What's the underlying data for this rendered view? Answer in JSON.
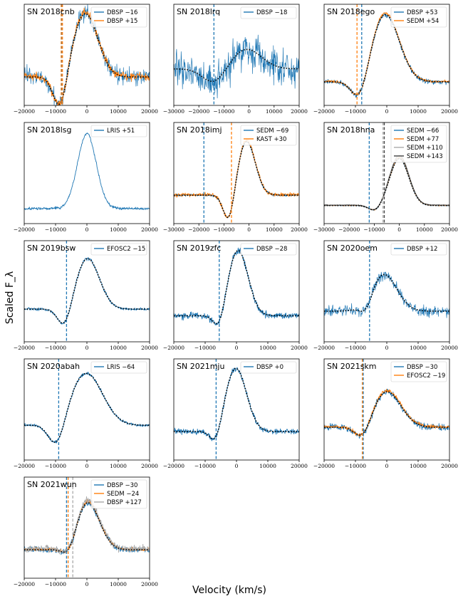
{
  "figure": {
    "ylabel": "Scaled F_λ",
    "xlabel": "Velocity (km/s)"
  },
  "colors": {
    "blue": "#1f77b4",
    "blue_dark": "#0a6aa8",
    "orange": "#ff7f0e",
    "gray": "#a9a9a9",
    "dark": "#444444",
    "model": "#000000"
  },
  "chart_data": [
    {
      "type": "line",
      "title": "SN 2018cnb",
      "xlim": [
        -20000,
        20000
      ],
      "xticks": [
        -20000,
        -10000,
        0,
        10000,
        20000
      ],
      "series": [
        {
          "name": "DBSP −16",
          "color": "blue",
          "noise": 0.22,
          "seed": 11
        },
        {
          "name": "DBSP +15",
          "color": "orange",
          "noise": 0.1,
          "seed": 12
        }
      ],
      "profile": {
        "emit_v": -500,
        "emit_w": 4000,
        "emit_a": 1.0,
        "abs_v": -8500,
        "abs_w": 2200,
        "abs_a": 0.55,
        "base": 0.3
      },
      "vlines": [
        {
          "v": -8000,
          "color": "blue"
        },
        {
          "v": -8200,
          "color": "orange"
        },
        {
          "v": -7800,
          "color": "orange"
        }
      ]
    },
    {
      "type": "line",
      "title": "SN 2018lrq",
      "xlim": [
        -30000,
        20000
      ],
      "xticks": [
        -30000,
        -20000,
        -10000,
        0,
        10000,
        20000
      ],
      "series": [
        {
          "name": "DBSP −18",
          "color": "blue",
          "noise": 0.55,
          "seed": 21
        }
      ],
      "profile": {
        "emit_v": -1000,
        "emit_w": 6000,
        "emit_a": 0.35,
        "abs_v": -14000,
        "abs_w": 4500,
        "abs_a": 0.25,
        "base": 0.5
      },
      "vlines": [
        {
          "v": -14000,
          "color": "blue"
        }
      ]
    },
    {
      "type": "line",
      "title": "SN 2018ego",
      "xlim": [
        -20000,
        20000
      ],
      "xticks": [
        -20000,
        -10000,
        0,
        10000,
        20000
      ],
      "series": [
        {
          "name": "DBSP +53",
          "color": "blue",
          "noise": 0.06,
          "seed": 31
        },
        {
          "name": "SEDM +54",
          "color": "orange",
          "noise": 0.03,
          "seed": 32
        }
      ],
      "profile": {
        "emit_v": -500,
        "emit_w": 4500,
        "emit_a": 1.0,
        "abs_v": -8500,
        "abs_w": 2600,
        "abs_a": 0.35,
        "base": 0.2
      },
      "vlines": [
        {
          "v": -8000,
          "color": "blue"
        },
        {
          "v": -9500,
          "color": "orange"
        }
      ]
    },
    {
      "type": "line",
      "title": "SN 2018lsg",
      "xlim": [
        -20000,
        20000
      ],
      "xticks": [
        -20000,
        -10000,
        0,
        10000,
        20000
      ],
      "series": [
        {
          "name": "LRIS +51",
          "color": "blue",
          "noise": 0.03,
          "seed": 41
        }
      ],
      "profile": {
        "emit_v": 0,
        "emit_w": 3000,
        "emit_a": 1.0,
        "abs_v": -8000,
        "abs_w": 2000,
        "abs_a": 0.0,
        "base": 0.05
      },
      "vlines": [],
      "no_model": true
    },
    {
      "type": "line",
      "title": "SN 2018imj",
      "xlim": [
        -30000,
        20000
      ],
      "xticks": [
        -30000,
        -20000,
        -10000,
        0,
        10000,
        20000
      ],
      "series": [
        {
          "name": "SEDM −69",
          "color": "blue",
          "noise": 0.03,
          "seed": 51
        },
        {
          "name": "KAST +30",
          "color": "orange",
          "noise": 0.05,
          "seed": 52
        }
      ],
      "profile": {
        "emit_v": -1000,
        "emit_w": 3500,
        "emit_a": 0.85,
        "abs_v": -8000,
        "abs_w": 2200,
        "abs_a": 0.45,
        "base": 0.3
      },
      "vlines": [
        {
          "v": -18000,
          "color": "blue"
        },
        {
          "v": -7000,
          "color": "orange"
        }
      ]
    },
    {
      "type": "line",
      "title": "SN 2018hna",
      "xlim": [
        -30000,
        20000
      ],
      "xticks": [
        -30000,
        -20000,
        -10000,
        0,
        10000,
        20000
      ],
      "series": [
        {
          "name": "SEDM −66",
          "color": "blue",
          "noise": 0.01,
          "seed": 61
        },
        {
          "name": "SEDM +77",
          "color": "orange",
          "noise": 0.01,
          "seed": 62
        },
        {
          "name": "SEDM +110",
          "color": "gray",
          "noise": 0.01,
          "seed": 63
        },
        {
          "name": "SEDM +143",
          "color": "dark",
          "noise": 0.01,
          "seed": 64
        }
      ],
      "profile": {
        "emit_v": 0,
        "emit_w": 3800,
        "emit_a": 0.65,
        "abs_v": -9500,
        "abs_w": 2500,
        "abs_a": 0.08,
        "base": 0.1
      },
      "vlines": [
        {
          "v": -12000,
          "color": "blue"
        },
        {
          "v": -6500,
          "color": "gray"
        },
        {
          "v": -6000,
          "color": "dark"
        }
      ]
    },
    {
      "type": "line",
      "title": "SN 2019bsw",
      "xlim": [
        -20000,
        20000
      ],
      "xticks": [
        -20000,
        -10000,
        0,
        10000,
        20000
      ],
      "series": [
        {
          "name": "EFOSC2 −15",
          "color": "blue",
          "noise": 0.04,
          "seed": 71
        }
      ],
      "profile": {
        "emit_v": 200,
        "emit_w": 3800,
        "emit_a": 0.85,
        "abs_v": -7000,
        "abs_w": 2200,
        "abs_a": 0.35,
        "base": 0.4
      },
      "vlines": [
        {
          "v": -6500,
          "color": "blue"
        }
      ]
    },
    {
      "type": "line",
      "title": "SN 2019zfc",
      "xlim": [
        -20000,
        20000
      ],
      "xticks": [
        -20000,
        -10000,
        0,
        10000,
        20000
      ],
      "series": [
        {
          "name": "DBSP −28",
          "color": "blue",
          "noise": 0.08,
          "seed": 81
        }
      ],
      "profile": {
        "emit_v": 500,
        "emit_w": 3200,
        "emit_a": 1.0,
        "abs_v": -5500,
        "abs_w": 1800,
        "abs_a": 0.25,
        "base": 0.25
      },
      "vlines": [
        {
          "v": -5500,
          "color": "blue"
        }
      ]
    },
    {
      "type": "line",
      "title": "SN 2020oem",
      "xlim": [
        -20000,
        20000
      ],
      "xticks": [
        -20000,
        -10000,
        0,
        10000,
        20000
      ],
      "series": [
        {
          "name": "DBSP +12",
          "color": "blue",
          "noise": 0.15,
          "seed": 91
        }
      ],
      "profile": {
        "emit_v": -1000,
        "emit_w": 4200,
        "emit_a": 0.6,
        "abs_v": -6500,
        "abs_w": 2000,
        "abs_a": 0.2,
        "base": 0.35
      },
      "vlines": [
        {
          "v": -5500,
          "color": "blue"
        }
      ]
    },
    {
      "type": "line",
      "title": "SN 2020abah",
      "xlim": [
        -20000,
        20000
      ],
      "xticks": [
        -20000,
        -10000,
        0,
        10000,
        20000
      ],
      "series": [
        {
          "name": "LRIS −64",
          "color": "blue",
          "noise": 0.04,
          "seed": 101
        }
      ],
      "profile": {
        "emit_v": -200,
        "emit_w": 5200,
        "emit_a": 0.9,
        "abs_v": -9500,
        "abs_w": 2600,
        "abs_a": 0.45,
        "base": 0.45
      },
      "vlines": [
        {
          "v": -9000,
          "color": "blue"
        }
      ]
    },
    {
      "type": "line",
      "title": "SN 2021mju",
      "xlim": [
        -20000,
        20000
      ],
      "xticks": [
        -20000,
        -10000,
        0,
        10000,
        20000
      ],
      "series": [
        {
          "name": "DBSP +0",
          "color": "blue",
          "noise": 0.07,
          "seed": 111
        }
      ],
      "profile": {
        "emit_v": -200,
        "emit_w": 3400,
        "emit_a": 1.0,
        "abs_v": -6500,
        "abs_w": 1800,
        "abs_a": 0.25,
        "base": 0.3
      },
      "vlines": [
        {
          "v": -6500,
          "color": "blue"
        }
      ]
    },
    {
      "type": "line",
      "title": "SN 2021skm",
      "xlim": [
        -20000,
        20000
      ],
      "xticks": [
        -20000,
        -10000,
        0,
        10000,
        20000
      ],
      "series": [
        {
          "name": "DBSP −30",
          "color": "blue",
          "noise": 0.09,
          "seed": 121
        },
        {
          "name": "EFOSC2 −19",
          "color": "orange",
          "noise": 0.05,
          "seed": 122
        }
      ],
      "profile": {
        "emit_v": 0,
        "emit_w": 4500,
        "emit_a": 0.6,
        "abs_v": -7500,
        "abs_w": 2500,
        "abs_a": 0.25,
        "base": 0.4
      },
      "vlines": [
        {
          "v": -7500,
          "color": "blue"
        },
        {
          "v": -7800,
          "color": "orange"
        }
      ]
    },
    {
      "type": "line",
      "title": "SN 2021wun",
      "xlim": [
        -20000,
        20000
      ],
      "xticks": [
        -20000,
        -10000,
        0,
        10000,
        20000
      ],
      "series": [
        {
          "name": "DBSP −30",
          "color": "blue",
          "noise": 0.08,
          "seed": 131
        },
        {
          "name": "SEDM −24",
          "color": "orange",
          "noise": 0.05,
          "seed": 132
        },
        {
          "name": "DBSP +127",
          "color": "gray",
          "noise": 0.1,
          "seed": 133
        }
      ],
      "profile": {
        "emit_v": 200,
        "emit_w": 3800,
        "emit_a": 0.75,
        "abs_v": -5500,
        "abs_w": 2200,
        "abs_a": 0.2,
        "base": 0.3
      },
      "vlines": [
        {
          "v": -6500,
          "color": "blue"
        },
        {
          "v": -6000,
          "color": "orange"
        },
        {
          "v": -4500,
          "color": "gray"
        }
      ]
    }
  ]
}
